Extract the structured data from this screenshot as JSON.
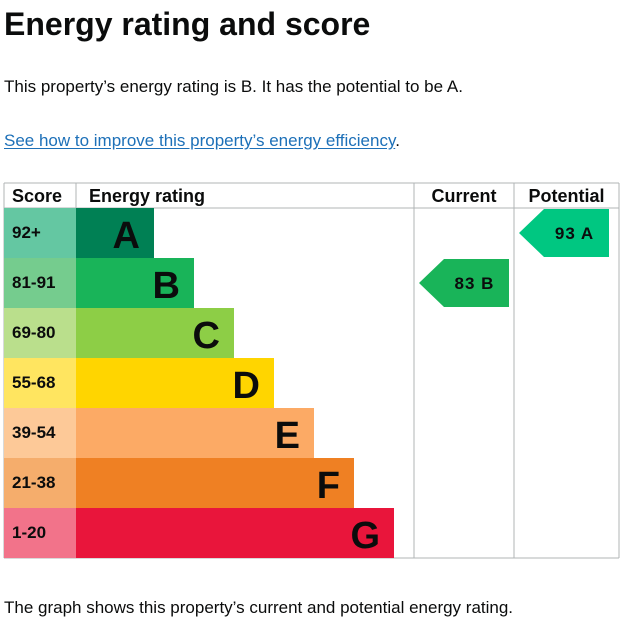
{
  "page": {
    "title": "Energy rating and score",
    "intro": "This property’s energy rating is B. It has the potential to be A.",
    "link_text": "See how to improve this property’s energy efficiency",
    "link_suffix": ".",
    "footnote": "The graph shows this property’s current and potential energy rating."
  },
  "chart_data": {
    "type": "bar",
    "columns": {
      "score": "Score",
      "rating": "Energy rating",
      "current": "Current",
      "potential": "Potential"
    },
    "bands": [
      {
        "score": "92+",
        "letter": "A",
        "color": "#008054",
        "score_color": "#64c7a2"
      },
      {
        "score": "81-91",
        "letter": "B",
        "color": "#19b459",
        "score_color": "#75cc8e"
      },
      {
        "score": "69-80",
        "letter": "C",
        "color": "#8dce46",
        "score_color": "#badf8c"
      },
      {
        "score": "55-68",
        "letter": "D",
        "color": "#ffd500",
        "score_color": "#ffe560"
      },
      {
        "score": "39-54",
        "letter": "E",
        "color": "#fcaa65",
        "score_color": "#fdc998"
      },
      {
        "score": "21-38",
        "letter": "F",
        "color": "#ef8023",
        "score_color": "#f5ad6c"
      },
      {
        "score": "1-20",
        "letter": "G",
        "color": "#e9153b",
        "score_color": "#f2738a"
      }
    ],
    "current": {
      "value": 83,
      "letter": "B",
      "label": "83 B",
      "color": "#19b459"
    },
    "potential": {
      "value": 93,
      "letter": "A",
      "label": "93 A",
      "color": "#00c781"
    }
  }
}
